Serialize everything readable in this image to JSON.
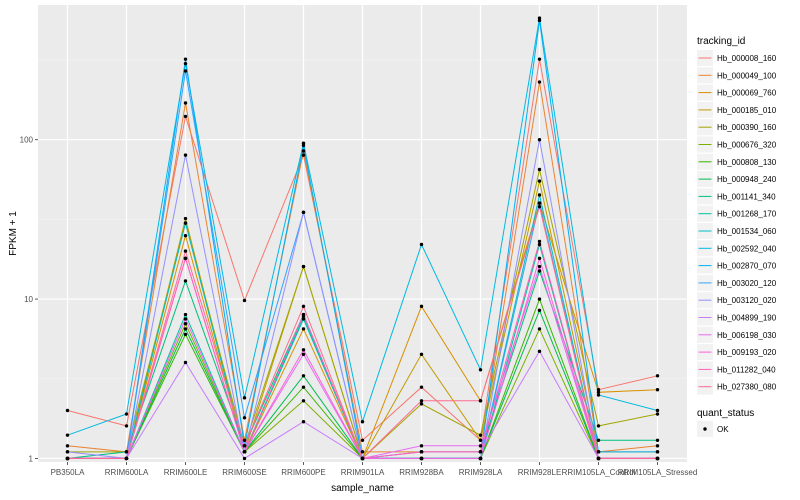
{
  "chart_data": {
    "type": "line",
    "xlabel": "sample_name",
    "ylabel": "FPKM + 1",
    "y_scale": "log10",
    "ylim": [
      0.95,
      700
    ],
    "y_ticks": [
      1,
      10,
      100
    ],
    "y_tick_labels": [
      "1",
      "10",
      "100"
    ],
    "grid": true,
    "legend_placement": "right",
    "categories": [
      "PB350LA",
      "RRIM600LA",
      "RRIM600LE",
      "RRIM600SE",
      "RRIM600PE",
      "RRIM901LA",
      "RRIM928BA",
      "RRIM928LA",
      "RRIM928LE",
      "RRIM105LA_Control",
      "RRIM105LA_Stressed"
    ],
    "legend": {
      "color_title": "tracking_id",
      "shape_title": "quant_status",
      "shape_entries": [
        "OK"
      ]
    },
    "series": [
      {
        "name": "Hb_000008_160",
        "color": "#F8766D",
        "values": [
          2.0,
          1.6,
          140,
          9.8,
          80,
          1.3,
          2.8,
          1.3,
          320,
          2.7,
          3.3
        ]
      },
      {
        "name": "Hb_000049_100",
        "color": "#EA8331",
        "values": [
          1.2,
          1.1,
          170,
          1.3,
          85,
          1.1,
          1.1,
          1.1,
          230,
          1.1,
          1.2
        ]
      },
      {
        "name": "Hb_000069_760",
        "color": "#D89000",
        "values": [
          1.0,
          1.0,
          25,
          1.1,
          6.5,
          1.0,
          9.0,
          2.3,
          40,
          2.6,
          2.7
        ]
      },
      {
        "name": "Hb_000185_010",
        "color": "#C09B00",
        "values": [
          1.0,
          1.0,
          32,
          1.1,
          16,
          1.0,
          4.5,
          1.3,
          55,
          1.1,
          1.1
        ]
      },
      {
        "name": "Hb_000390_160",
        "color": "#A3A500",
        "values": [
          1.1,
          1.1,
          30,
          1.2,
          16,
          1.0,
          2.2,
          1.4,
          65,
          1.6,
          1.9
        ]
      },
      {
        "name": "Hb_000676_320",
        "color": "#7CAE00",
        "values": [
          1.0,
          1.0,
          7.0,
          1.1,
          2.3,
          1.0,
          1.0,
          1.0,
          6.5,
          1.0,
          1.0
        ]
      },
      {
        "name": "Hb_000808_130",
        "color": "#39B600",
        "values": [
          1.0,
          1.0,
          6.0,
          1.1,
          2.8,
          1.0,
          1.0,
          1.0,
          10,
          1.0,
          1.0
        ]
      },
      {
        "name": "Hb_000948_240",
        "color": "#00BB4E",
        "values": [
          1.0,
          1.0,
          6.5,
          1.1,
          3.3,
          1.0,
          1.0,
          1.0,
          8.5,
          1.0,
          1.0
        ]
      },
      {
        "name": "Hb_001141_340",
        "color": "#00BF7D",
        "values": [
          1.0,
          1.1,
          13,
          1.2,
          8.0,
          1.0,
          1.1,
          1.1,
          15,
          1.3,
          1.3
        ]
      },
      {
        "name": "Hb_001268_170",
        "color": "#00C1A3",
        "values": [
          1.0,
          1.0,
          8.0,
          1.1,
          7.5,
          1.0,
          1.0,
          1.0,
          22,
          1.0,
          1.0
        ]
      },
      {
        "name": "Hb_001534_060",
        "color": "#00BFC4",
        "values": [
          1.0,
          1.0,
          30,
          1.1,
          7.8,
          1.0,
          1.0,
          1.0,
          45,
          1.0,
          1.0
        ]
      },
      {
        "name": "Hb_002592_040",
        "color": "#00BAE0",
        "values": [
          1.4,
          1.9,
          300,
          2.4,
          95,
          1.7,
          22,
          3.6,
          580,
          2.5,
          2.0
        ]
      },
      {
        "name": "Hb_002870_070",
        "color": "#00B0F6",
        "values": [
          1.0,
          1.0,
          320,
          1.2,
          92,
          1.0,
          1.0,
          1.0,
          560,
          1.1,
          1.1
        ]
      },
      {
        "name": "Hb_003020_120",
        "color": "#35A2FF",
        "values": [
          1.0,
          1.0,
          270,
          1.8,
          35,
          1.0,
          1.0,
          1.0,
          40,
          1.0,
          1.0
        ]
      },
      {
        "name": "Hb_003120_020",
        "color": "#9590FF",
        "values": [
          1.1,
          1.0,
          80,
          1.1,
          35,
          1.0,
          1.0,
          1.0,
          100,
          1.0,
          1.0
        ]
      },
      {
        "name": "Hb_004899_190",
        "color": "#C77CFF",
        "values": [
          1.0,
          1.0,
          4.0,
          1.0,
          1.7,
          1.0,
          1.1,
          1.1,
          4.7,
          1.0,
          1.0
        ]
      },
      {
        "name": "Hb_006198_030",
        "color": "#E76BF3",
        "values": [
          1.0,
          1.0,
          7.5,
          1.1,
          4.5,
          1.0,
          1.2,
          1.2,
          16,
          1.0,
          1.0
        ]
      },
      {
        "name": "Hb_009193_020",
        "color": "#FA62DB",
        "values": [
          1.0,
          1.0,
          18,
          1.1,
          4.8,
          1.0,
          1.0,
          1.0,
          18,
          1.0,
          1.0
        ]
      },
      {
        "name": "Hb_011282_040",
        "color": "#FF62BC",
        "values": [
          1.0,
          1.0,
          18,
          1.1,
          8.0,
          1.0,
          1.1,
          1.1,
          23,
          1.0,
          1.0
        ]
      },
      {
        "name": "Hb_027380_080",
        "color": "#FF6C91",
        "values": [
          1.0,
          1.0,
          20,
          1.2,
          9.0,
          1.0,
          2.3,
          2.3,
          38,
          1.0,
          1.0
        ]
      }
    ]
  }
}
